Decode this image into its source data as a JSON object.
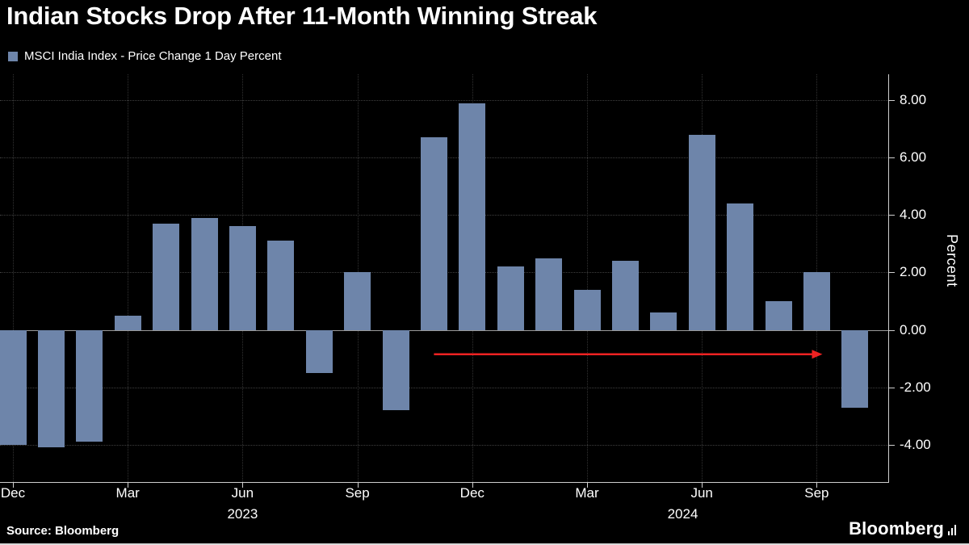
{
  "title": "Indian Stocks Drop After 11-Month Winning Streak",
  "legend": {
    "label": "MSCI India Index - Price Change 1 Day Percent",
    "swatch_color": "#6e85aa"
  },
  "source": "Source: Bloomberg",
  "logo_text": "Bloomberg",
  "chart_data": {
    "type": "bar",
    "title": "Indian Stocks Drop After 11-Month Winning Streak",
    "series_name": "MSCI India Index - Price Change 1 Day Percent",
    "x": [
      "Dec 2022",
      "Jan 2023",
      "Feb 2023",
      "Mar 2023",
      "Apr 2023",
      "May 2023",
      "Jun 2023",
      "Jul 2023",
      "Aug 2023",
      "Sep 2023",
      "Oct 2023",
      "Nov 2023",
      "Dec 2023",
      "Jan 2024",
      "Feb 2024",
      "Mar 2024",
      "Apr 2024",
      "May 2024",
      "Jun 2024",
      "Jul 2024",
      "Aug 2024",
      "Sep 2024",
      "Oct 2024"
    ],
    "values": [
      -4.0,
      -4.1,
      -3.9,
      0.5,
      3.7,
      3.9,
      3.6,
      3.1,
      -1.5,
      2.0,
      -2.8,
      6.7,
      7.9,
      2.2,
      2.5,
      1.4,
      2.4,
      0.6,
      6.8,
      4.4,
      1.0,
      2.0,
      -2.7
    ],
    "ylabel": "Percent",
    "ylim": [
      -5.3,
      8.9
    ],
    "yticks": [
      {
        "value": 8,
        "label": "8.00"
      },
      {
        "value": 6,
        "label": "6.00"
      },
      {
        "value": 4,
        "label": "4.00"
      },
      {
        "value": 2,
        "label": "2.00"
      },
      {
        "value": 0,
        "label": "0.00"
      },
      {
        "value": -2,
        "label": "-2.00"
      },
      {
        "value": -4,
        "label": "-4.00"
      }
    ],
    "xticks": [
      {
        "index": 0,
        "label": "Dec"
      },
      {
        "index": 3,
        "label": "Mar"
      },
      {
        "index": 6,
        "label": "Jun"
      },
      {
        "index": 9,
        "label": "Sep"
      },
      {
        "index": 12,
        "label": "Dec"
      },
      {
        "index": 15,
        "label": "Mar"
      },
      {
        "index": 18,
        "label": "Jun"
      },
      {
        "index": 21,
        "label": "Sep"
      }
    ],
    "year_labels": [
      {
        "index": 6,
        "label": "2023"
      },
      {
        "index": 17.5,
        "label": "2024"
      }
    ],
    "bar_color": "#6e85aa",
    "grid": true,
    "grid_color": "#3f3f3f",
    "axis_color": "#cfcfcf",
    "legend_position": "top-left",
    "annotation_arrow": {
      "from_index": 11,
      "to_index": 21.15,
      "y_value": -0.85,
      "color": "#ee2222"
    }
  }
}
